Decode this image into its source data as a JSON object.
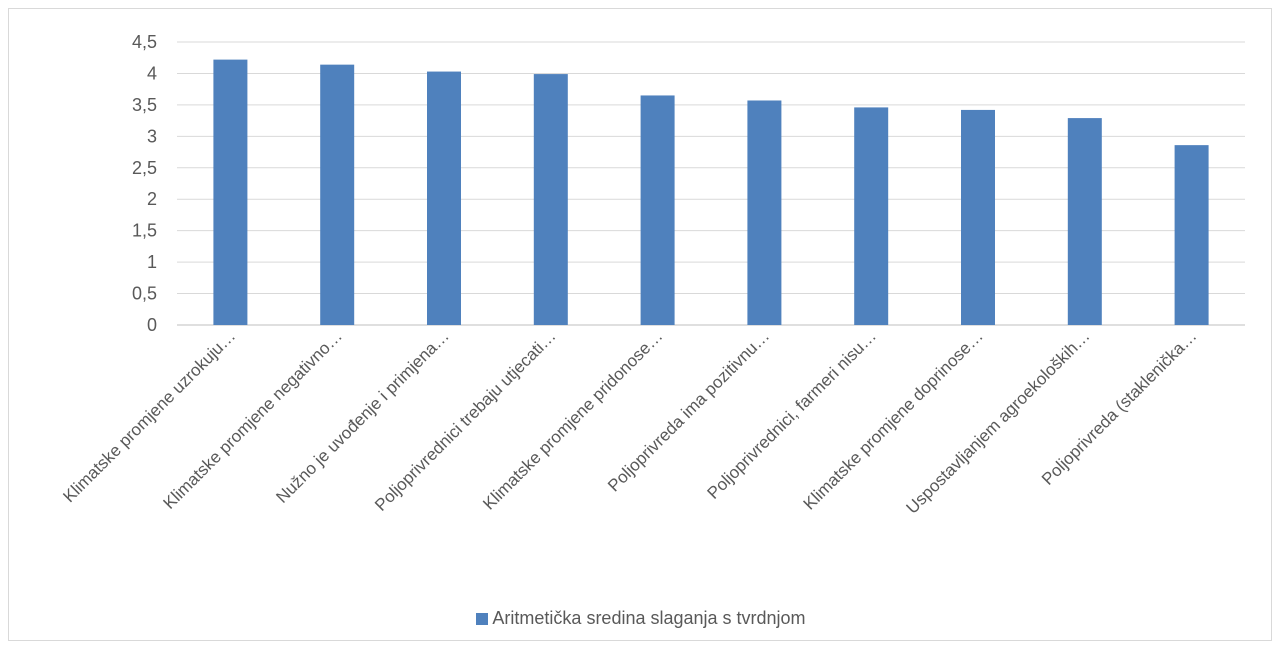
{
  "chart_data": {
    "type": "bar",
    "categories": [
      "Klimatske promjene uzrokuju…",
      "Klimatske promjene negativno…",
      "Nužno je uvođenje i primjena…",
      "Poljoprivrednici trebaju utjecati…",
      "Klimatske promjene pridonose…",
      "Poljoprivreda ima pozitivnu…",
      "Poljoprivrednici, farmeri nisu…",
      "Klimatske promjene doprinose…",
      "Uspostavljanjem agroekoloških…",
      "Poljoprivreda (staklenička…"
    ],
    "series": [
      {
        "name": "Aritmetička sredina slaganja s tvrdnjom",
        "color": "#4f81bd",
        "values": [
          4.22,
          4.14,
          4.03,
          3.99,
          3.65,
          3.57,
          3.46,
          3.42,
          3.29,
          2.86
        ]
      }
    ],
    "ylim": [
      0,
      4.5
    ],
    "yticks": [
      "0",
      "0,5",
      "1",
      "1,5",
      "2",
      "2,5",
      "3",
      "3,5",
      "4",
      "4,5"
    ],
    "grid": true,
    "legend_position": "bottom",
    "title": "",
    "xlabel": "",
    "ylabel": ""
  }
}
